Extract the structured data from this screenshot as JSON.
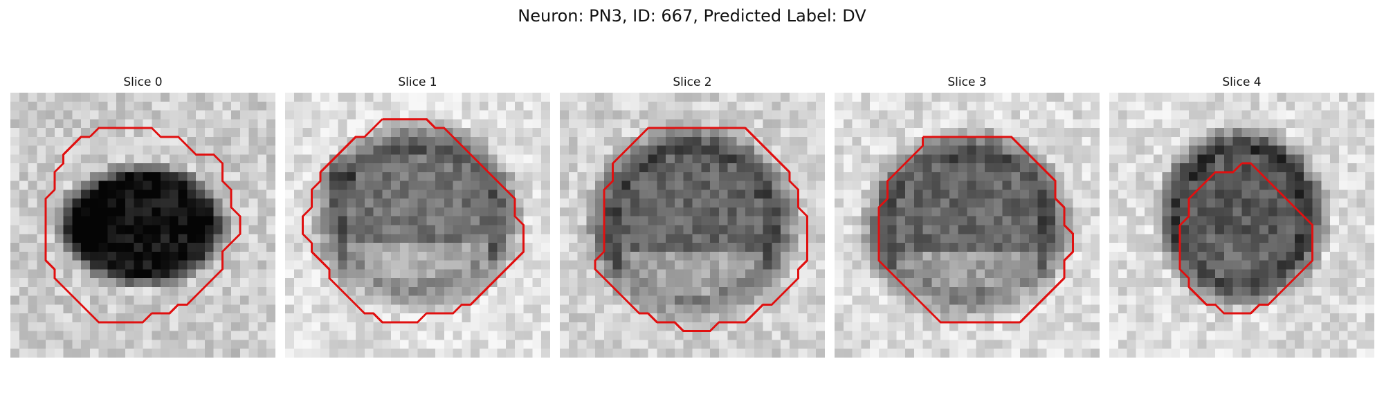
{
  "figure": {
    "title": "Neuron: PN3, ID: 667, Predicted Label: DV"
  },
  "slices": [
    {
      "label": "Slice 0",
      "contour_color": "#e01010"
    },
    {
      "label": "Slice 1",
      "contour_color": "#e01010"
    },
    {
      "label": "Slice 2",
      "contour_color": "#e01010"
    },
    {
      "label": "Slice 3",
      "contour_color": "#e01010"
    },
    {
      "label": "Slice 4",
      "contour_color": "#e01010"
    }
  ]
}
